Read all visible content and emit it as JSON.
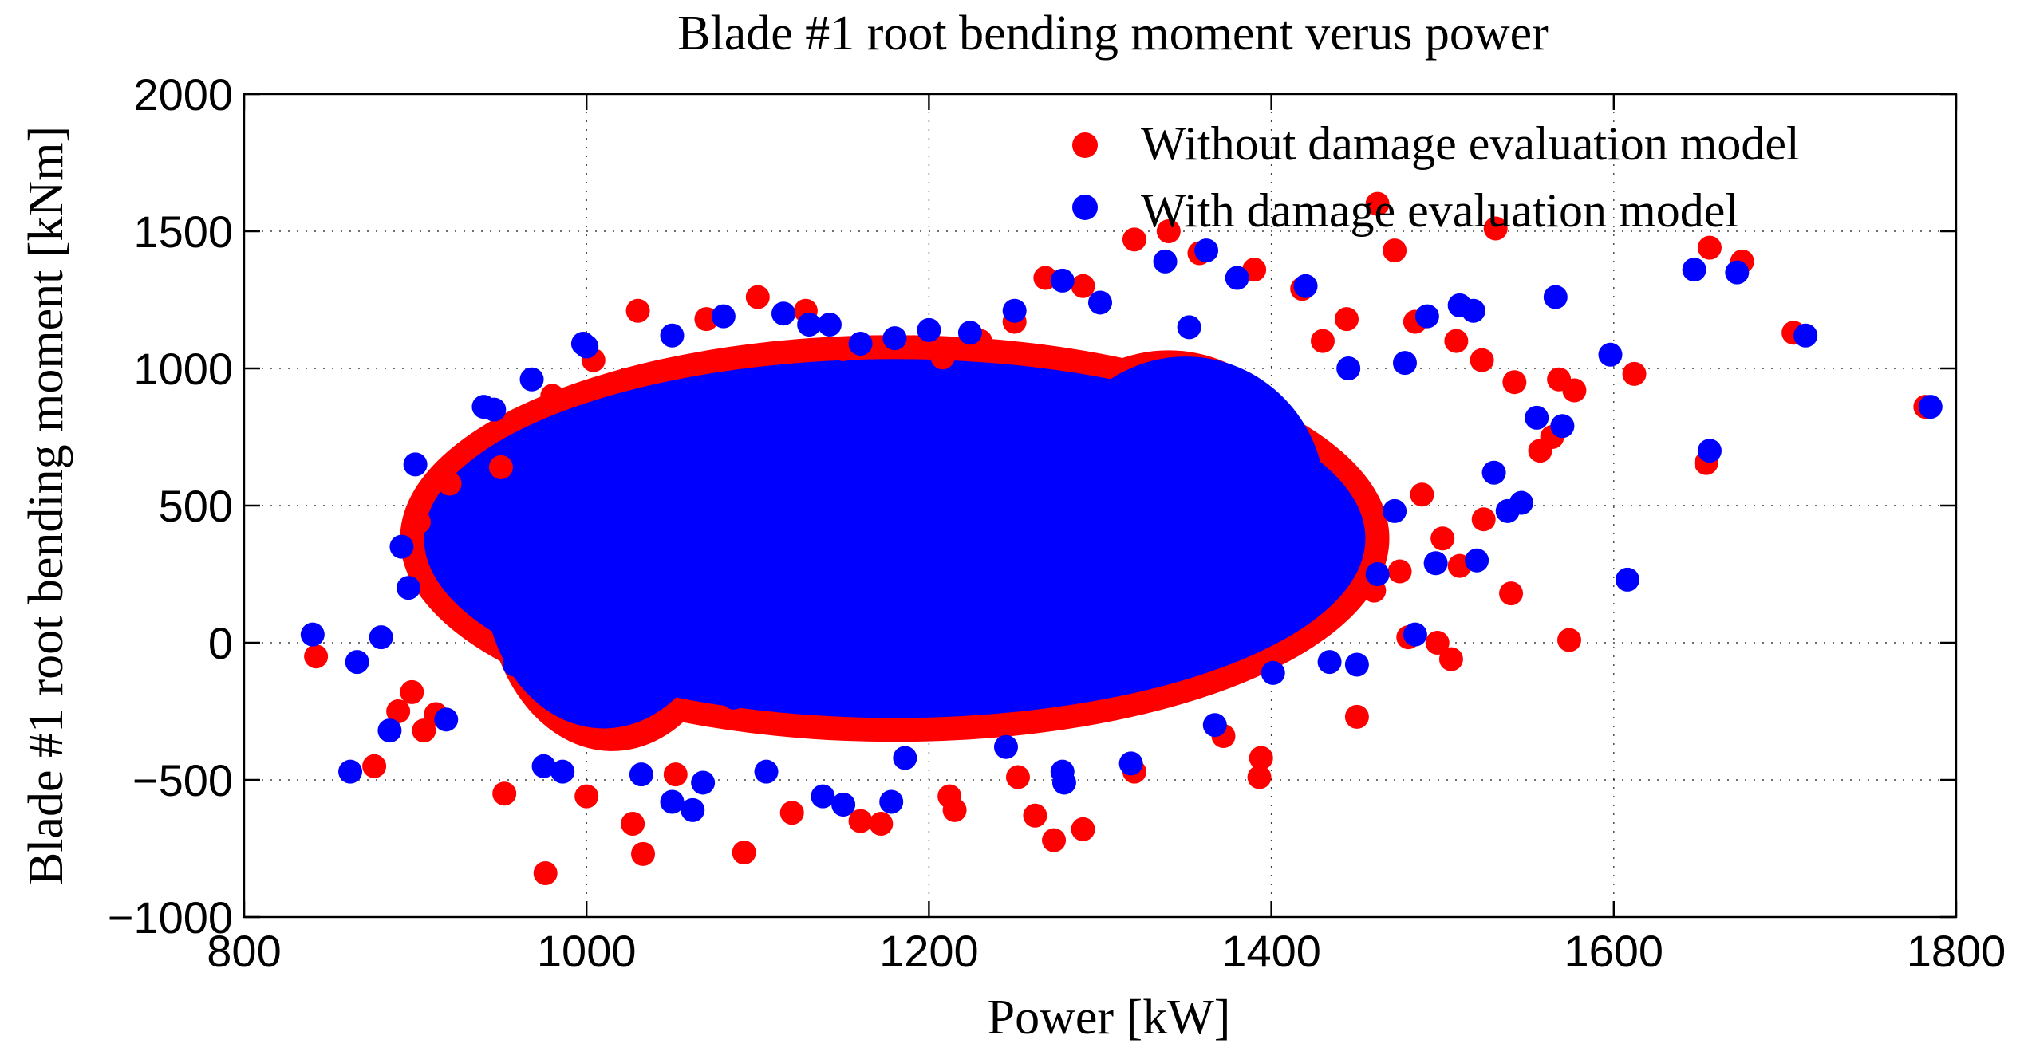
{
  "chart_data": {
    "type": "scatter",
    "title": "Blade #1 root bending moment verus power",
    "xlabel": "Power [kW]",
    "ylabel": "Blade #1 root bending moment [kNm]",
    "xlim": [
      800,
      1800
    ],
    "ylim": [
      -1000,
      2000
    ],
    "xticks": [
      800,
      1000,
      1200,
      1400,
      1600,
      1800
    ],
    "yticks": [
      -1000,
      -500,
      0,
      500,
      1000,
      1500,
      2000
    ],
    "xtick_labels": [
      "800",
      "1000",
      "1200",
      "1400",
      "1600",
      "1800"
    ],
    "ytick_labels": [
      "−1000",
      "−500",
      "0",
      "500",
      "1000",
      "1500",
      "2000"
    ],
    "grid": true,
    "legend_position": "top-right",
    "series": [
      {
        "name": "Without damage evaluation model",
        "color": "#ff0000",
        "points": [
          [
            842,
            -50
          ],
          [
            876,
            -450
          ],
          [
            890,
            -250
          ],
          [
            898,
            -180
          ],
          [
            905,
            -320
          ],
          [
            912,
            -260
          ],
          [
            952,
            -550
          ],
          [
            976,
            -840
          ],
          [
            1000,
            -560
          ],
          [
            1027,
            -660
          ],
          [
            1033,
            -770
          ],
          [
            1052,
            -480
          ],
          [
            1092,
            -765
          ],
          [
            1120,
            -620
          ],
          [
            1160,
            -650
          ],
          [
            1172,
            -660
          ],
          [
            1212,
            -560
          ],
          [
            1215,
            -610
          ],
          [
            1252,
            -490
          ],
          [
            1262,
            -630
          ],
          [
            1273,
            -720
          ],
          [
            1290,
            -680
          ],
          [
            1320,
            -470
          ],
          [
            1372,
            -340
          ],
          [
            1393,
            -490
          ],
          [
            1394,
            -420
          ],
          [
            1450,
            -270
          ],
          [
            1574,
            10
          ],
          [
            1612,
            980
          ],
          [
            1654,
            655
          ],
          [
            1656,
            1440
          ],
          [
            1675,
            1390
          ],
          [
            1705,
            1130
          ],
          [
            1782,
            860
          ],
          [
            1462,
            1600
          ],
          [
            1531,
            1510
          ],
          [
            1472,
            1430
          ],
          [
            1320,
            1470
          ],
          [
            1358,
            1420
          ],
          [
            1444,
            1180
          ],
          [
            1484,
            1170
          ],
          [
            1508,
            1100
          ],
          [
            1523,
            1030
          ],
          [
            1542,
            950
          ],
          [
            1568,
            960
          ],
          [
            1505,
            -60
          ],
          [
            1497,
            0
          ],
          [
            1480,
            20
          ],
          [
            1460,
            190
          ],
          [
            1510,
            280
          ],
          [
            1524,
            450
          ],
          [
            1540,
            180
          ],
          [
            1557,
            700
          ],
          [
            1564,
            750
          ],
          [
            1577,
            920
          ],
          [
            1390,
            1360
          ],
          [
            1418,
            1290
          ],
          [
            1268,
            1330
          ],
          [
            1250,
            1170
          ],
          [
            1230,
            1100
          ],
          [
            1208,
            1040
          ],
          [
            1178,
            1080
          ],
          [
            1150,
            1070
          ],
          [
            1128,
            1210
          ],
          [
            1100,
            1260
          ],
          [
            1070,
            1180
          ],
          [
            1030,
            1210
          ],
          [
            1004,
            1030
          ],
          [
            980,
            900
          ],
          [
            950,
            640
          ],
          [
            920,
            580
          ],
          [
            902,
            440
          ],
          [
            1290,
            1300
          ],
          [
            1340,
            1500
          ],
          [
            1488,
            540
          ],
          [
            1500,
            380
          ],
          [
            1475,
            260
          ],
          [
            1430,
            1100
          ]
        ]
      },
      {
        "name": "With damage evaluation model",
        "color": "#0000ff",
        "points": [
          [
            840,
            30
          ],
          [
            862,
            -470
          ],
          [
            866,
            -70
          ],
          [
            880,
            20
          ],
          [
            885,
            -320
          ],
          [
            892,
            350
          ],
          [
            896,
            200
          ],
          [
            900,
            650
          ],
          [
            918,
            -280
          ],
          [
            930,
            380
          ],
          [
            940,
            860
          ],
          [
            958,
            -80
          ],
          [
            975,
            -450
          ],
          [
            986,
            -470
          ],
          [
            998,
            1090
          ],
          [
            1032,
            -480
          ],
          [
            1050,
            -580
          ],
          [
            1062,
            -610
          ],
          [
            1068,
            -510
          ],
          [
            1086,
            -200
          ],
          [
            1105,
            -470
          ],
          [
            1138,
            -560
          ],
          [
            1150,
            -590
          ],
          [
            1178,
            -580
          ],
          [
            1186,
            -420
          ],
          [
            1245,
            -380
          ],
          [
            1278,
            -470
          ],
          [
            1279,
            -510
          ],
          [
            1318,
            -440
          ],
          [
            1367,
            -300
          ],
          [
            1378,
            220
          ],
          [
            1401,
            -110
          ],
          [
            1434,
            -70
          ],
          [
            1450,
            -80
          ],
          [
            1484,
            30
          ],
          [
            1496,
            290
          ],
          [
            1608,
            230
          ],
          [
            1598,
            1050
          ],
          [
            1647,
            1360
          ],
          [
            1656,
            700
          ],
          [
            1672,
            1350
          ],
          [
            1712,
            1120
          ],
          [
            1785,
            860
          ],
          [
            1566,
            1260
          ],
          [
            1510,
            1230
          ],
          [
            1518,
            1210
          ],
          [
            1491,
            1190
          ],
          [
            1478,
            1020
          ],
          [
            1445,
            1000
          ],
          [
            1420,
            1300
          ],
          [
            1380,
            1330
          ],
          [
            1362,
            1430
          ],
          [
            1338,
            1390
          ],
          [
            1278,
            1320
          ],
          [
            1224,
            1130
          ],
          [
            1180,
            1110
          ],
          [
            1142,
            1160
          ],
          [
            1115,
            1200
          ],
          [
            1080,
            1190
          ],
          [
            1050,
            1120
          ],
          [
            1000,
            1080
          ],
          [
            968,
            960
          ],
          [
            946,
            850
          ],
          [
            1538,
            480
          ],
          [
            1546,
            510
          ],
          [
            1555,
            820
          ],
          [
            1570,
            790
          ],
          [
            1530,
            620
          ],
          [
            1520,
            300
          ],
          [
            1472,
            480
          ],
          [
            1462,
            250
          ],
          [
            1402,
            180
          ],
          [
            1352,
            1150
          ],
          [
            1300,
            1240
          ],
          [
            1250,
            1210
          ],
          [
            1200,
            1140
          ],
          [
            1160,
            1090
          ],
          [
            1130,
            1160
          ]
        ]
      }
    ]
  }
}
